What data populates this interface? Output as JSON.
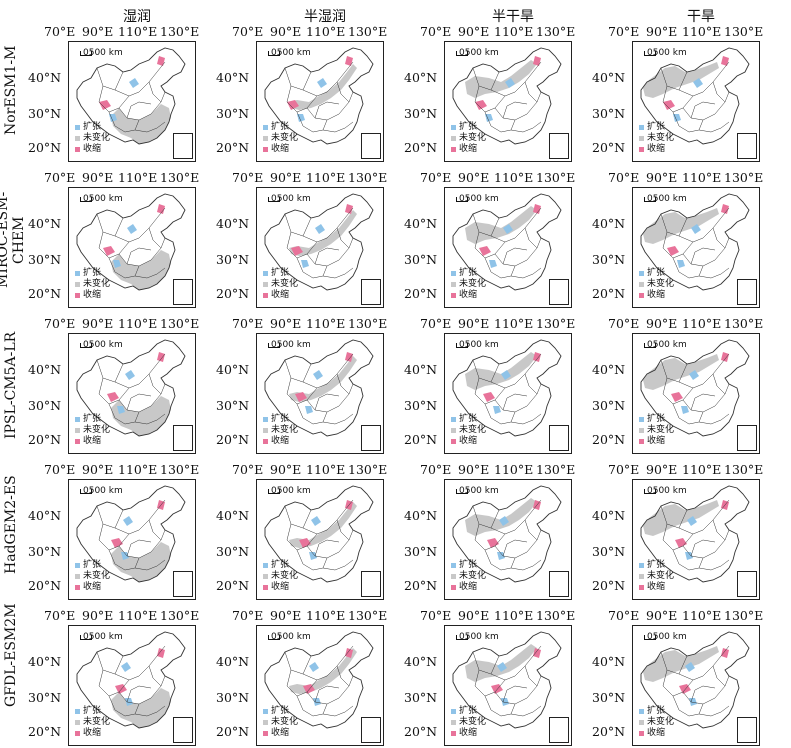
{
  "columns": [
    "湿润",
    "半湿润",
    "半干旱",
    "干旱"
  ],
  "rows": [
    "NorESM1-M",
    "MIROC-ESM-CHEM",
    "IPSL-CM5A-LR",
    "HadGEM2-ES",
    "GFDL-ESM2M"
  ],
  "axes": {
    "lon_ticks": [
      "70°E",
      "90°E",
      "110°E",
      "130°E"
    ],
    "lat_ticks": [
      "40°N",
      "30°N",
      "20°N"
    ]
  },
  "scale_label": "0500 km",
  "legend": [
    {
      "label": "扩张",
      "color": "#8fc3e8"
    },
    {
      "label": "未变化",
      "color": "#c8c8c8"
    },
    {
      "label": "收缩",
      "color": "#e8739a"
    }
  ],
  "colors": {
    "unchanged": "#c8c8c8",
    "expansion": "#8fc3e8",
    "contraction": "#e8739a",
    "boundary": "#333333"
  }
}
